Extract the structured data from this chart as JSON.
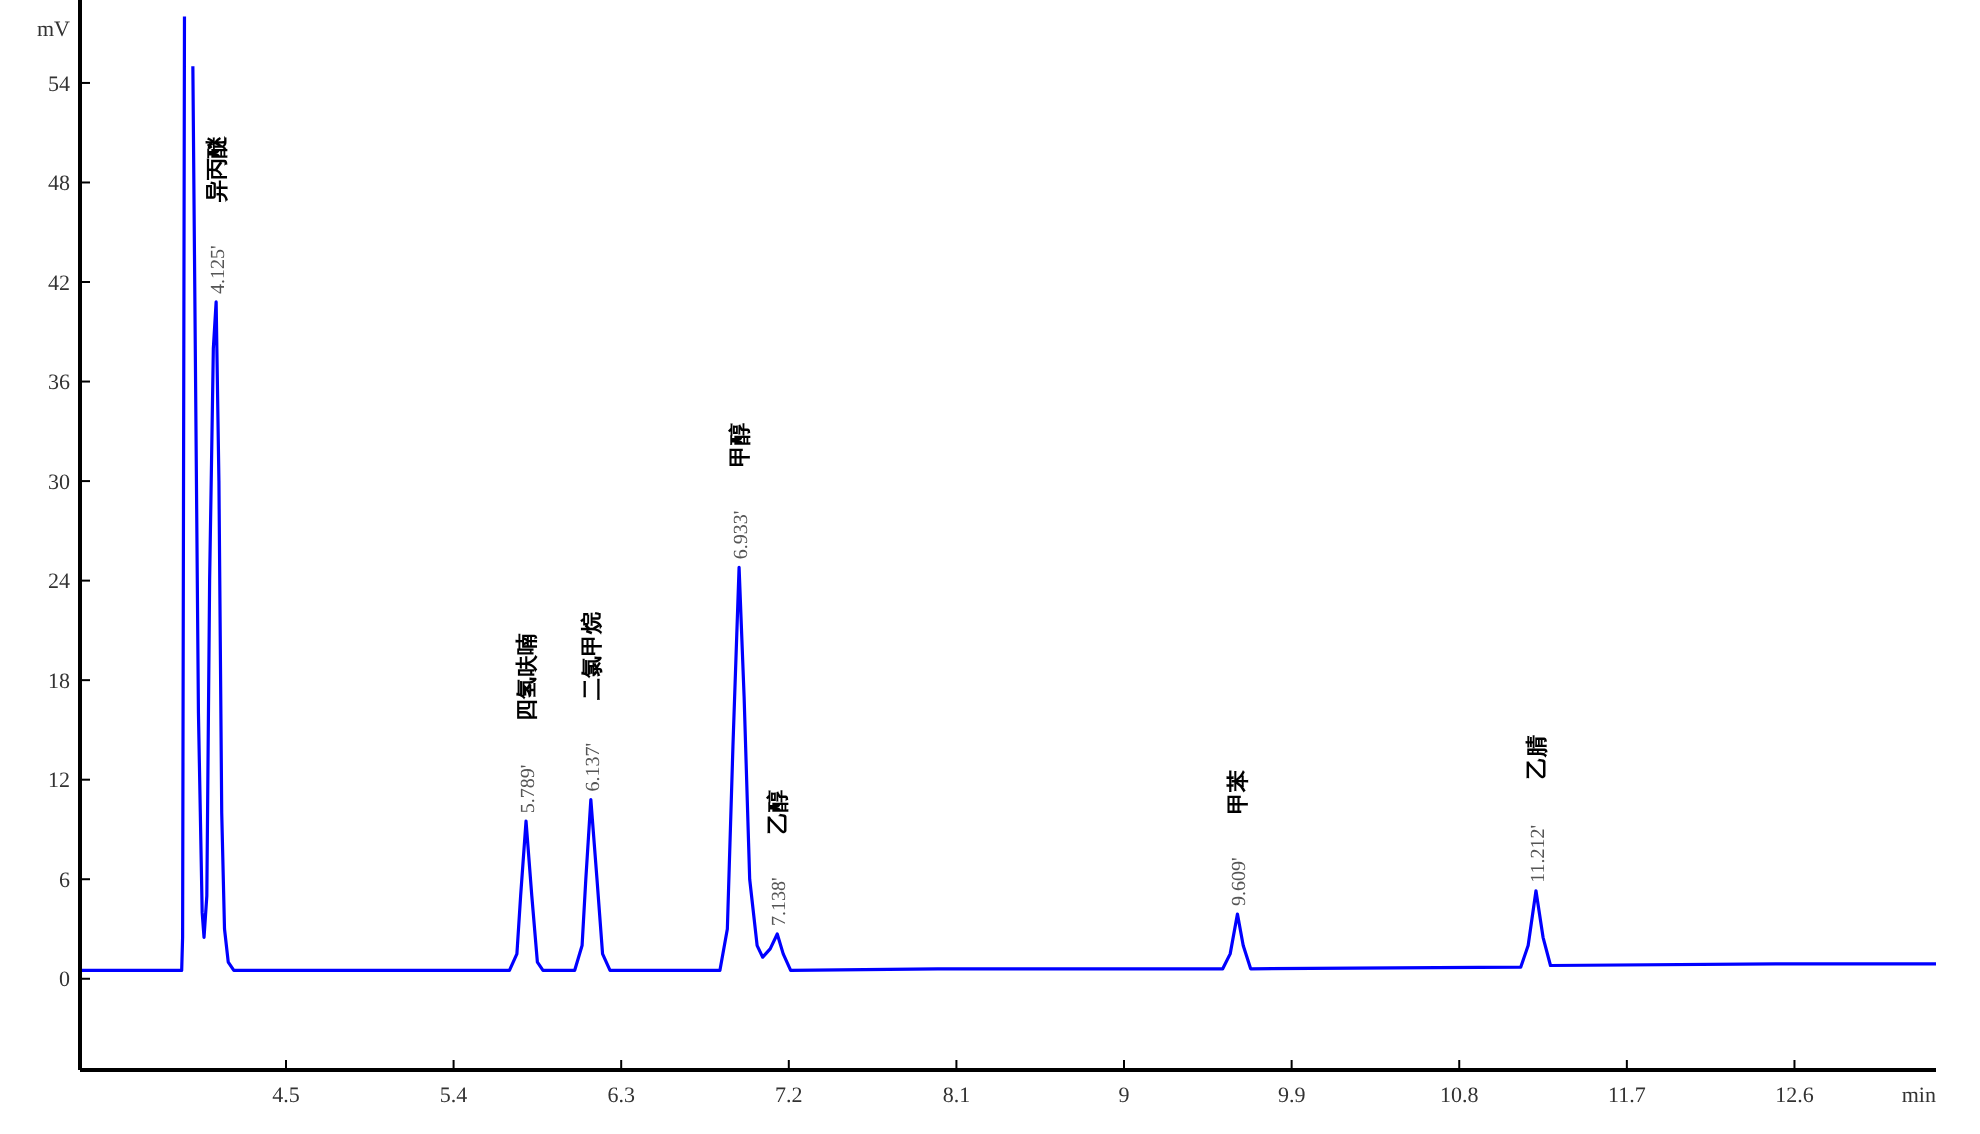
{
  "chart_data": {
    "type": "line",
    "xlabel": "min",
    "ylabel": "mV",
    "xlim": [
      3.394,
      13.36
    ],
    "ylim": [
      -5.5,
      59
    ],
    "xticks": [
      4.5,
      5.4,
      6.3,
      7.2,
      8.1,
      9,
      9.9,
      10.8,
      11.7,
      12.6
    ],
    "yticks": [
      0,
      6,
      12,
      18,
      24,
      30,
      36,
      42,
      48,
      54
    ],
    "grid": false,
    "marker": "none",
    "line_style": "solid",
    "series": [
      {
        "color": "#0000ff",
        "x": [
          3.394,
          3.94,
          3.945,
          3.955,
          3.96,
          3.99,
          4.0,
          4.03,
          4.05,
          4.06,
          4.075,
          4.09,
          4.11,
          4.125,
          4.14,
          4.155,
          4.17,
          4.19,
          4.22,
          5.7,
          5.74,
          5.76,
          5.789,
          5.82,
          5.85,
          5.88,
          6.05,
          6.09,
          6.11,
          6.137,
          6.17,
          6.2,
          6.24,
          6.83,
          6.87,
          6.9,
          6.933,
          6.96,
          6.99,
          7.03,
          7.06,
          7.1,
          7.138,
          7.17,
          7.21,
          8.0,
          9.53,
          9.57,
          9.609,
          9.64,
          9.68,
          11.13,
          11.17,
          11.212,
          11.25,
          11.29,
          12.5,
          13.36
        ],
        "values": [
          0.5,
          0.5,
          2.5,
          58,
          null,
          null,
          55,
          16,
          4,
          2.5,
          5,
          24,
          38,
          40.8,
          30,
          10,
          3,
          1,
          0.5,
          0.5,
          1.5,
          5,
          9.5,
          5,
          1,
          0.5,
          0.5,
          2,
          6,
          10.8,
          6,
          1.5,
          0.5,
          0.5,
          3,
          14,
          24.8,
          17,
          6,
          2,
          1.3,
          1.8,
          2.7,
          1.5,
          0.5,
          0.6,
          0.6,
          1.5,
          3.9,
          2,
          0.6,
          0.7,
          2,
          5.3,
          2.5,
          0.8,
          0.9,
          0.9
        ]
      }
    ],
    "annotations": [
      {
        "text": "4.125'",
        "x": 4.125,
        "y": 40.8
      },
      "异丙醚",
      {
        "text": "5.789'",
        "x": 5.789,
        "y": 9.5
      },
      "四氢呋喃",
      {
        "text": "6.137'",
        "x": 6.137,
        "y": 10.8
      },
      "二氯甲烷",
      {
        "text": "6.933'",
        "x": 6.933,
        "y": 24.8
      },
      "甲醇",
      {
        "text": "7.138'",
        "x": 7.138,
        "y": 2.7
      },
      "乙醇",
      {
        "text": "9.609'",
        "x": 9.609,
        "y": 3.9
      },
      "甲苯",
      {
        "text": "11.212'",
        "x": 11.212,
        "y": 5.3
      },
      "乙腈"
    ]
  }
}
